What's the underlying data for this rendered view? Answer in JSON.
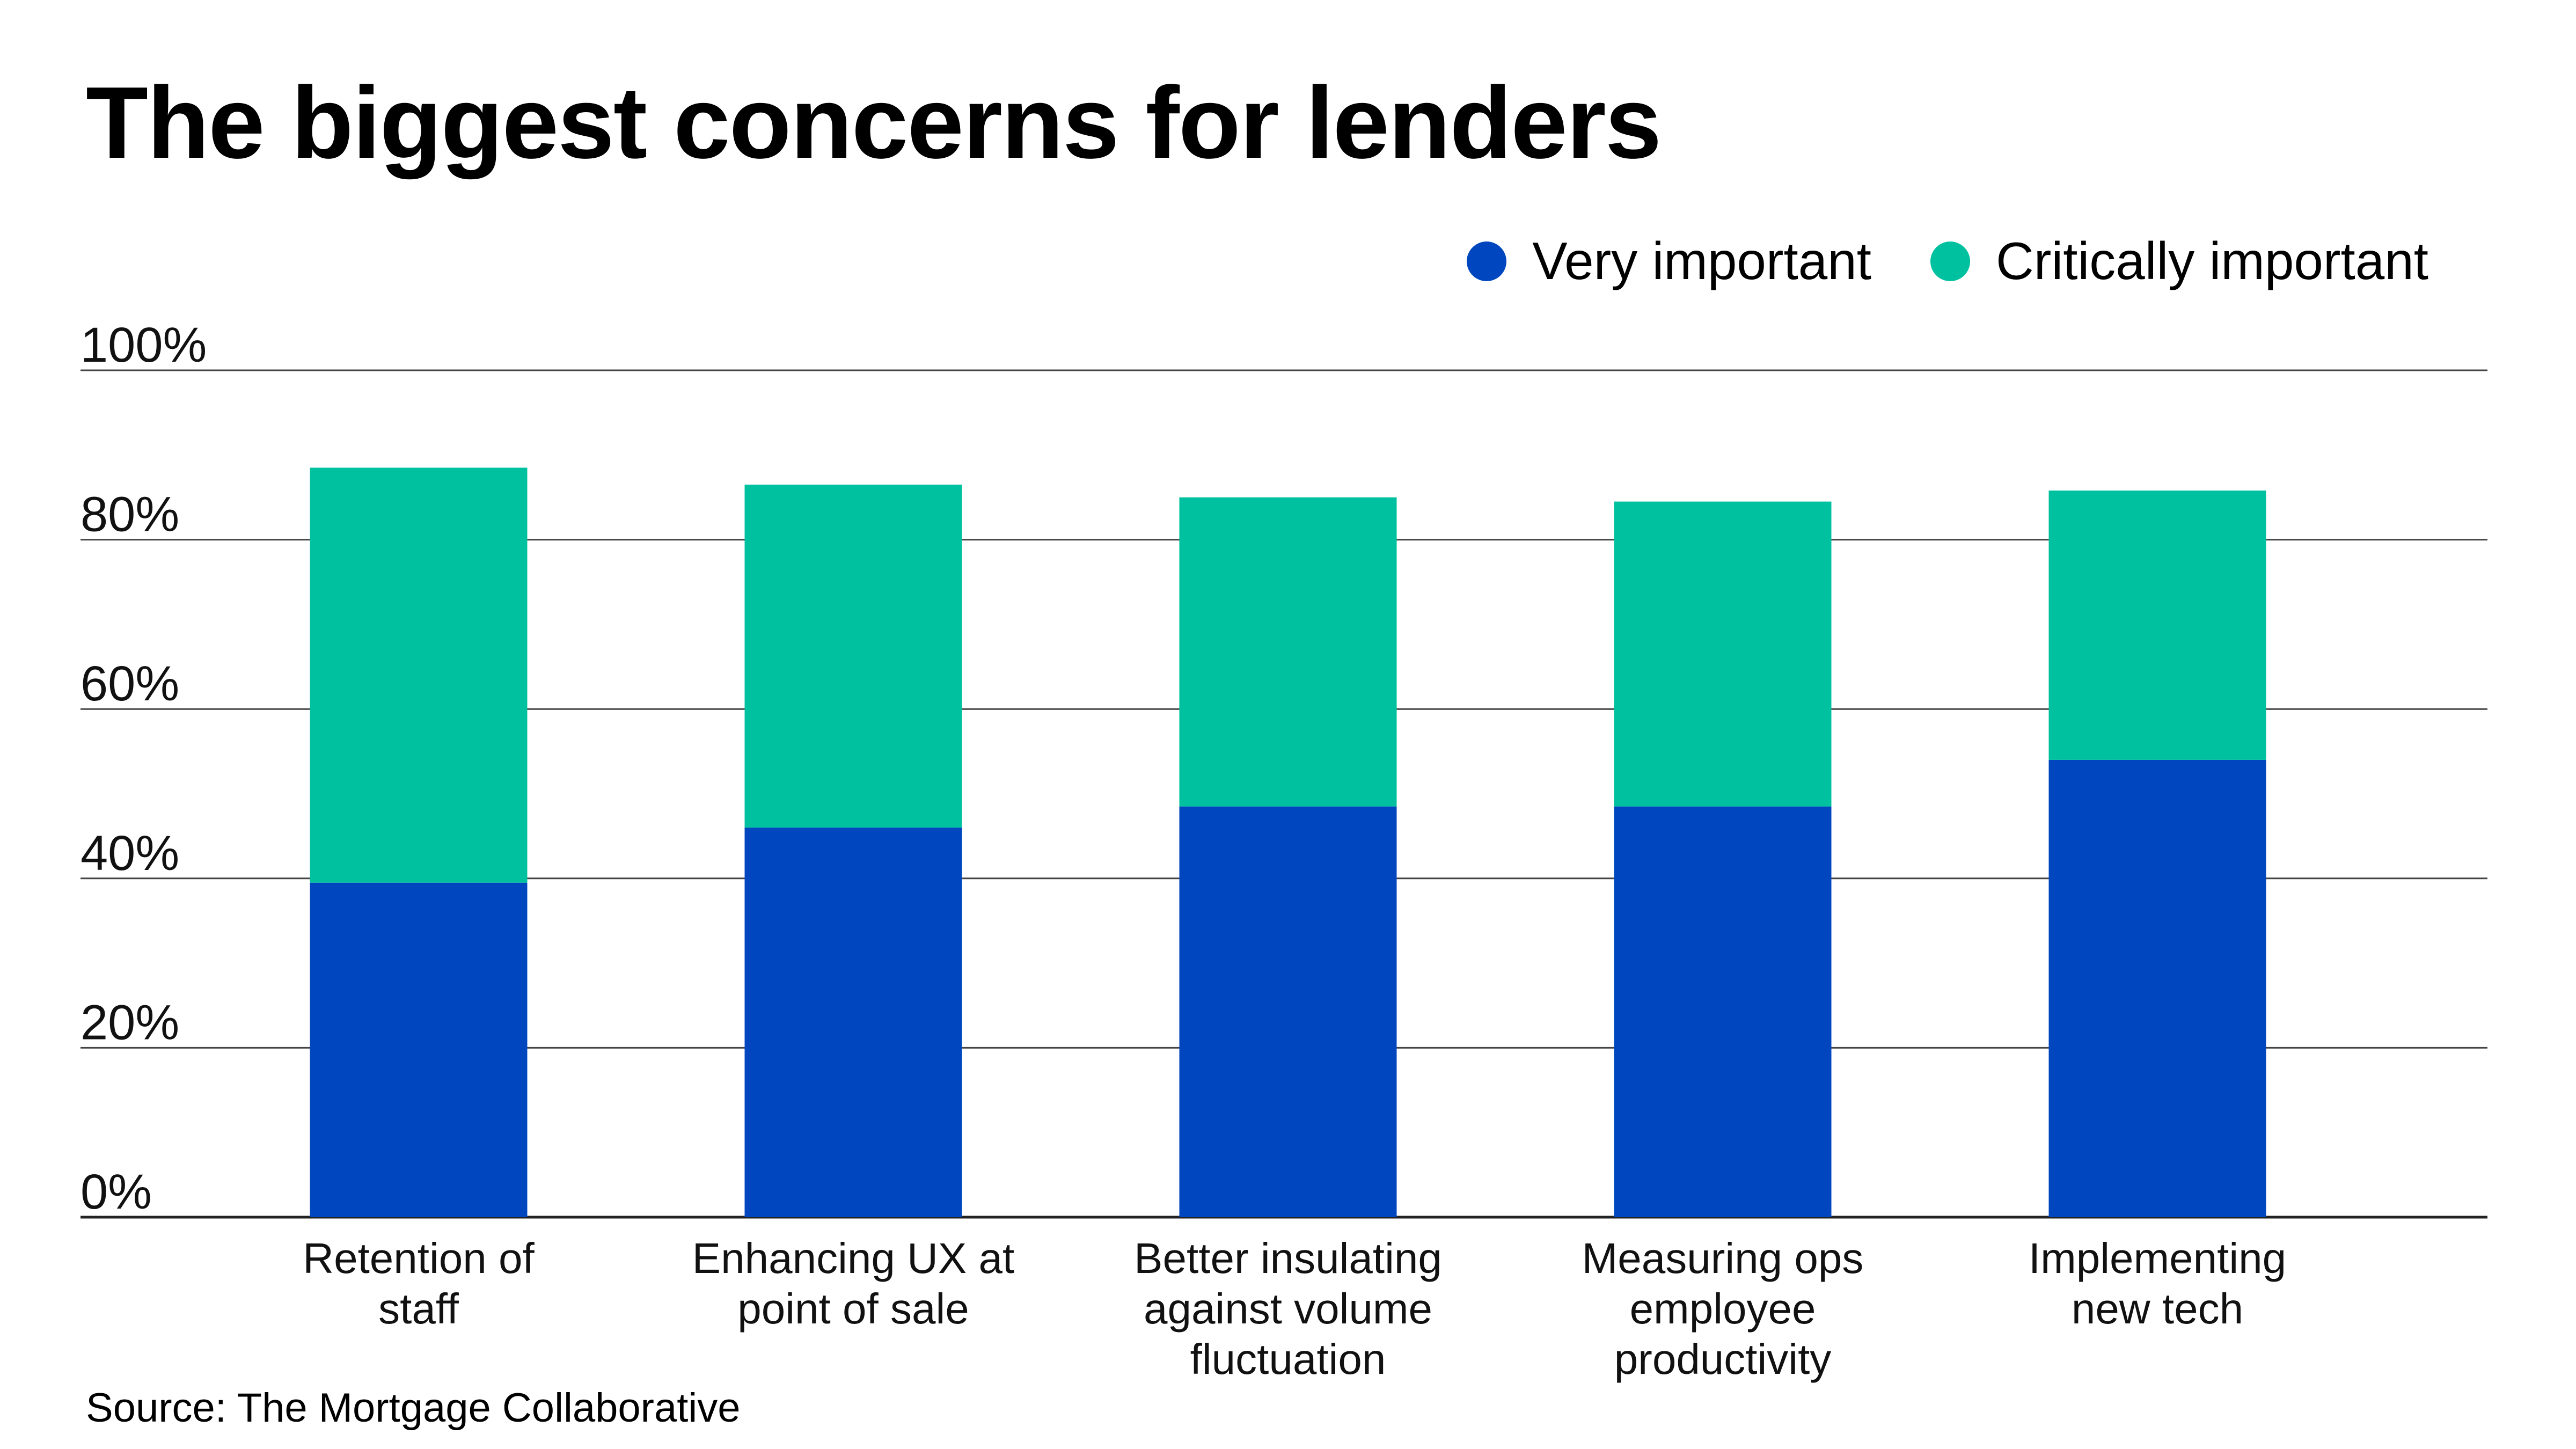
{
  "chart_data": {
    "type": "bar",
    "stacked": true,
    "title": "The biggest concerns for lenders",
    "categories": [
      "Retention of staff",
      "Enhancing UX at point of sale",
      "Better insulating against volume fluctuation",
      "Measuring ops employee productivity",
      "Implementing new tech"
    ],
    "category_lines": [
      [
        "Retention of",
        "staff"
      ],
      [
        "Enhancing UX at",
        "point of sale"
      ],
      [
        "Better insulating",
        "against volume",
        "fluctuation"
      ],
      [
        "Measuring ops",
        "employee",
        "productivity"
      ],
      [
        "Implementing",
        "new tech"
      ]
    ],
    "series": [
      {
        "name": "Very important",
        "color": "#0047BF",
        "values": [
          39.5,
          46,
          48.5,
          48.5,
          54
        ]
      },
      {
        "name": "Critically important",
        "color": "#00C19F",
        "values": [
          49,
          40.5,
          36.5,
          36,
          31.8
        ]
      }
    ],
    "ylim": [
      0,
      100
    ],
    "yticks": [
      0,
      20,
      40,
      60,
      80,
      100
    ],
    "ytick_labels": [
      "0%",
      "20%",
      "40%",
      "60%",
      "80%",
      "100%"
    ],
    "xlabel": "",
    "ylabel": "",
    "grid": true,
    "legend_position": "top-right",
    "source": "Source: The Mortgage Collaborative"
  }
}
